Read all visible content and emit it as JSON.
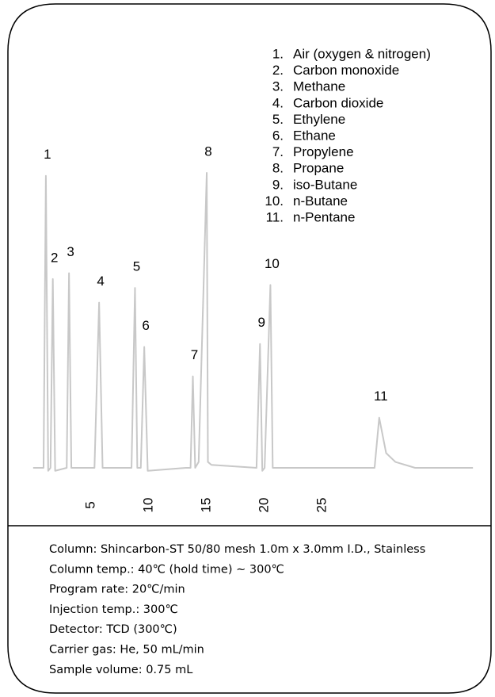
{
  "chart_data": {
    "type": "line",
    "x": [
      0,
      0.9,
      1.1,
      1.3,
      1.5,
      1.7,
      1.9,
      2.9,
      3.1,
      3.3,
      5.3,
      5.7,
      6.0,
      8.5,
      8.8,
      9.0,
      9.3,
      9.6,
      9.9,
      13.2,
      13.6,
      13.8,
      14.0,
      14.3,
      15.0,
      15.1,
      15.4,
      19.3,
      19.6,
      19.8,
      20.0,
      20.5,
      20.7,
      29.5,
      29.9,
      30.5,
      31.3,
      33,
      38
    ],
    "values": [
      0,
      0,
      99,
      -1,
      0,
      64,
      -1,
      0,
      66,
      0,
      0,
      56,
      0,
      0,
      61,
      0,
      0,
      41,
      -1,
      0,
      0,
      31,
      0,
      2,
      100,
      2,
      1,
      0,
      42,
      -1,
      0,
      62,
      0,
      0,
      17,
      5,
      2,
      0,
      0
    ],
    "color": "#c8c8c8",
    "xlim": [
      -0.4,
      38.4
    ],
    "ylim": [
      0,
      100
    ],
    "xticks": [
      5,
      10,
      15,
      20,
      25
    ],
    "annotations": [
      {
        "text": "1",
        "x": 1.1
      },
      {
        "text": "2",
        "x": 1.7
      },
      {
        "text": "3",
        "x": 3.1
      },
      {
        "text": "4",
        "x": 5.7
      },
      {
        "text": "5",
        "x": 8.8
      },
      {
        "text": "6",
        "x": 9.6
      },
      {
        "text": "7",
        "x": 13.8
      },
      {
        "text": "8",
        "x": 15.0
      },
      {
        "text": "9",
        "x": 19.6
      },
      {
        "text": "10",
        "x": 20.5
      },
      {
        "text": "11",
        "x": 29.9
      }
    ],
    "legend": [
      {
        "number": "1.",
        "name": "Air (oxygen & nitrogen)"
      },
      {
        "number": "2.",
        "name": "Carbon monoxide"
      },
      {
        "number": "3.",
        "name": "Methane"
      },
      {
        "number": "4.",
        "name": "Carbon dioxide"
      },
      {
        "number": "5.",
        "name": "Ethylene"
      },
      {
        "number": "6.",
        "name": "Ethane"
      },
      {
        "number": "7.",
        "name": "Propylene"
      },
      {
        "number": "8.",
        "name": "Propane"
      },
      {
        "number": "9.",
        "name": "iso-Butane"
      },
      {
        "number": "10.",
        "name": "n-Butane"
      },
      {
        "number": "11.",
        "name": "n-Pentane"
      }
    ],
    "conditions": [
      "Column: Shincarbon-ST 50/80 mesh  1.0m x 3.0mm I.D., Stainless",
      "Column temp.: 40℃ (hold time) ∼ 300℃",
      "Program rate: 20℃/min",
      "Injection temp.: 300℃",
      "Detector: TCD (300℃)",
      "Carrier gas: He, 50 mL/min",
      "Sample volume: 0.75 mL"
    ]
  }
}
